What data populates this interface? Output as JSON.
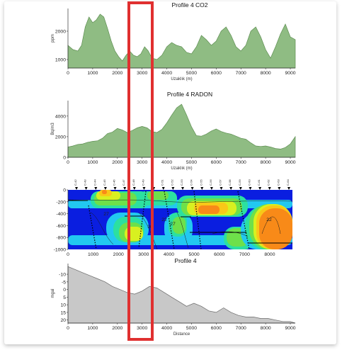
{
  "chart_data": [
    {
      "type": "area",
      "title": "Profile 4 CO2",
      "xlabel": "Uzaklık (m)",
      "ylabel": "ppm",
      "xlim": [
        0,
        9200
      ],
      "ylim": [
        700,
        2800
      ],
      "xticks": [
        0,
        1000,
        2000,
        3000,
        4000,
        5000,
        6000,
        7000,
        8000,
        9000
      ],
      "yticks": [
        1000,
        2000
      ],
      "fill": "#8fbc83",
      "x": [
        0,
        200,
        400,
        550,
        700,
        850,
        1000,
        1150,
        1300,
        1450,
        1600,
        1750,
        1900,
        2050,
        2200,
        2350,
        2500,
        2650,
        2800,
        2950,
        3100,
        3250,
        3400,
        3600,
        3800,
        4000,
        4200,
        4400,
        4600,
        4800,
        5000,
        5200,
        5400,
        5600,
        5800,
        6000,
        6200,
        6400,
        6600,
        6800,
        7000,
        7200,
        7400,
        7600,
        7800,
        8000,
        8200,
        8400,
        8600,
        8800,
        9000,
        9200
      ],
      "y": [
        1500,
        1350,
        1300,
        1500,
        2150,
        2500,
        2300,
        2400,
        2600,
        2500,
        2100,
        1650,
        1300,
        1100,
        950,
        1150,
        1300,
        1150,
        1100,
        1200,
        1450,
        1300,
        1050,
        1000,
        1150,
        1450,
        1600,
        1500,
        1450,
        1250,
        1200,
        1450,
        1850,
        1700,
        1500,
        1650,
        2000,
        2150,
        1850,
        1450,
        1300,
        1500,
        2000,
        2150,
        1800,
        1350,
        1050,
        1450,
        1900,
        2250,
        1800,
        1700
      ]
    },
    {
      "type": "area",
      "title": "Profile 4 RADON",
      "xlabel": "Uzaklık (m)",
      "ylabel": "Bq/m3",
      "xlim": [
        0,
        9200
      ],
      "ylim": [
        0,
        5500
      ],
      "xticks": [
        0,
        1000,
        2000,
        3000,
        4000,
        5000,
        6000,
        7000,
        8000,
        9000
      ],
      "yticks": [
        0,
        2000,
        4000
      ],
      "fill": "#8fbc83",
      "x": [
        0,
        200,
        400,
        600,
        800,
        1000,
        1200,
        1400,
        1600,
        1800,
        2000,
        2200,
        2400,
        2600,
        2800,
        3000,
        3200,
        3400,
        3600,
        3800,
        4000,
        4200,
        4400,
        4600,
        4800,
        5000,
        5200,
        5400,
        5600,
        5800,
        6000,
        6200,
        6400,
        6600,
        6800,
        7000,
        7200,
        7400,
        7600,
        7800,
        8000,
        8200,
        8400,
        8600,
        8800,
        9000,
        9200
      ],
      "y": [
        1000,
        1100,
        1250,
        1300,
        1450,
        1550,
        1600,
        1850,
        2300,
        2450,
        2800,
        2650,
        2400,
        2600,
        2850,
        3000,
        2850,
        2500,
        2400,
        2700,
        3350,
        4100,
        4800,
        5150,
        4100,
        2950,
        2100,
        2050,
        2250,
        2550,
        2750,
        2500,
        2350,
        2250,
        2050,
        1850,
        1750,
        1400,
        1100,
        1050,
        1100,
        1000,
        850,
        800,
        950,
        1300,
        2000
      ]
    },
    {
      "type": "heatmap",
      "title": "",
      "xlim": [
        0,
        8900
      ],
      "ylim": [
        -1000,
        0
      ],
      "xticks": [
        0,
        1000,
        2000,
        3000,
        4000,
        5000,
        6000,
        7000,
        8000
      ],
      "yticks": [
        0,
        -200,
        -400,
        -600,
        -800,
        -1000
      ],
      "station_labels": [
        "C-42",
        "C-43",
        "C-44",
        "C-45",
        "C-46",
        "C-47",
        "C-48",
        "C-49",
        "C-50",
        "C-51",
        "C-52",
        "C-53",
        "C-54",
        "C-55",
        "C-56",
        "C-57",
        "C-58",
        "C-59",
        "C-60",
        "C-61",
        "C-62",
        "C-63",
        "C-64"
      ],
      "contour_labels": [
        "27",
        "30",
        "27",
        "22",
        "22"
      ],
      "colors": [
        "#0a1ee0",
        "#1e6ef0",
        "#22c8f0",
        "#2ce0a0",
        "#6ee04a",
        "#d8f020",
        "#f8c818",
        "#f88a18",
        "#e8500e"
      ]
    },
    {
      "type": "area",
      "title": "Profile 4",
      "xlabel": "Distance",
      "ylabel": "mgal",
      "xlim": [
        0,
        9200
      ],
      "ylim": [
        22,
        -17
      ],
      "xticks": [
        0,
        1000,
        2000,
        3000,
        4000,
        5000,
        6000,
        7000,
        8000,
        9000
      ],
      "yticks": [
        -10,
        -5,
        0,
        5,
        10,
        15,
        20
      ],
      "fill": "#c8c8c8",
      "x": [
        0,
        300,
        600,
        900,
        1200,
        1500,
        1800,
        2100,
        2400,
        2700,
        3000,
        3300,
        3600,
        3900,
        4200,
        4500,
        4800,
        5100,
        5400,
        5700,
        6000,
        6300,
        6600,
        6900,
        7200,
        7500,
        7800,
        8100,
        8400,
        8700,
        9000,
        9200
      ],
      "y": [
        -15,
        -13,
        -11,
        -9,
        -7,
        -5,
        -2,
        0,
        2,
        3,
        1,
        -2,
        -1,
        2,
        5,
        8,
        11,
        9,
        11,
        14,
        15,
        12,
        15,
        17,
        18,
        18,
        19,
        19,
        20,
        21,
        21,
        22
      ]
    }
  ],
  "highlight": {
    "color": "#e03030",
    "x_range": [
      2700,
      3500
    ]
  }
}
